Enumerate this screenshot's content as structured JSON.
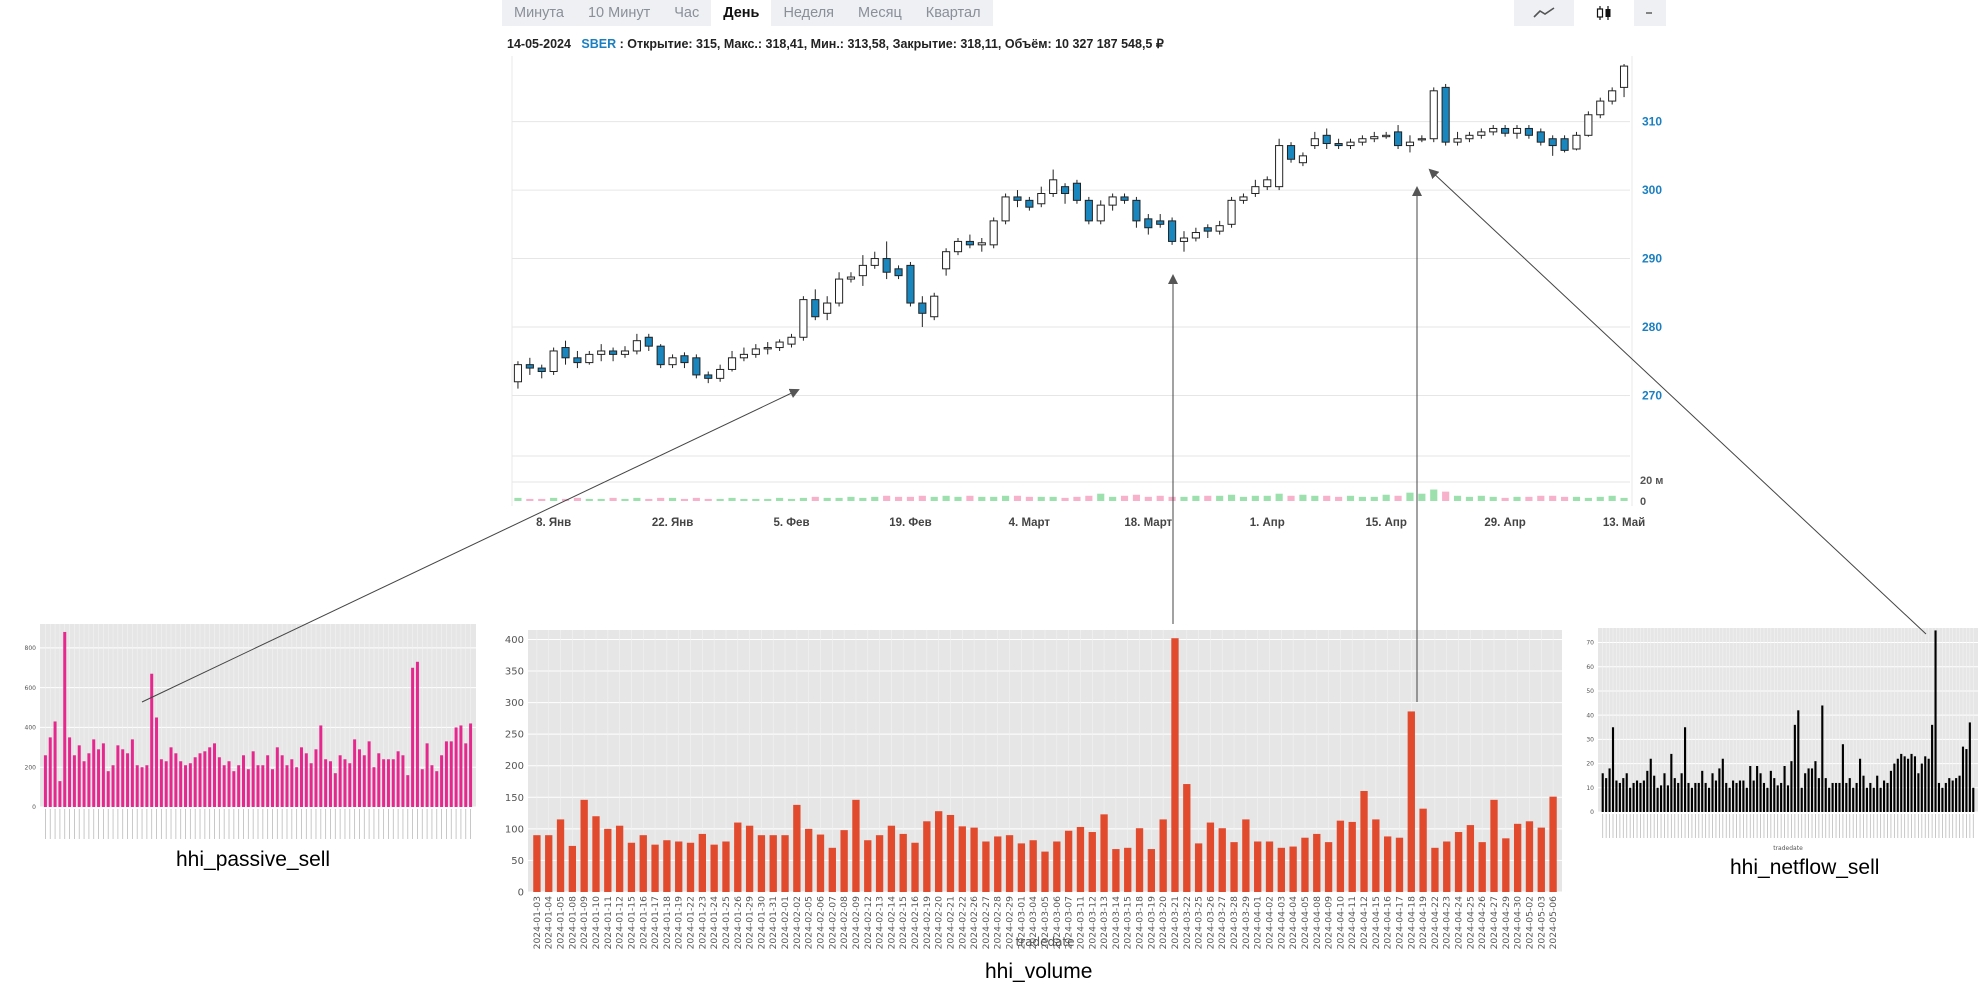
{
  "toolbar": {
    "timeframes": [
      {
        "label": "Минута",
        "active": false
      },
      {
        "label": "10 Минут",
        "active": false
      },
      {
        "label": "Час",
        "active": false
      },
      {
        "label": "День",
        "active": true
      },
      {
        "label": "Неделя",
        "active": false
      },
      {
        "label": "Месяц",
        "active": false
      },
      {
        "label": "Квартал",
        "active": false
      }
    ],
    "chart_types": [
      {
        "icon": "line-chart-icon",
        "active": false
      },
      {
        "icon": "candlestick-icon",
        "active": true
      }
    ]
  },
  "info_bar": {
    "date": "14-05-2024",
    "ticker": "SBER",
    "details": ": Открытие: 315, Макс.: 318,41, Мин.: 313,58, Закрытие: 318,11, Объём: 10 327 187 548,5 ₽"
  },
  "colors": {
    "bear_fill": "#1a86be",
    "bull_fill": "#ffffff",
    "vol_up": "#9be0ad",
    "vol_down": "#f7b1cb",
    "axis_text": "#1a7fc1",
    "passive_bar": "#e6278d",
    "volume_bar": "#e24a2e",
    "netflow_bar": "#f5a623",
    "plot_bg": "#e6e6e6"
  },
  "chart_data": [
    {
      "id": "sber-daily",
      "type": "candlestick",
      "title": "",
      "y_ticks": [
        "270",
        "280",
        "290",
        "300",
        "310"
      ],
      "ylim": [
        267,
        319
      ],
      "volume_ticks": [
        "0",
        "20 м"
      ],
      "x_ticks": [
        "8. Янв",
        "22. Янв",
        "5. Фев",
        "19. Фев",
        "4. Март",
        "18. Март",
        "1. Апр",
        "15. Апр",
        "29. Апр",
        "13. Май"
      ],
      "x_tick_index": [
        3,
        13,
        23,
        33,
        43,
        53,
        63,
        73,
        83,
        93
      ],
      "candles": [
        [
          272.0,
          274.5,
          271.0,
          275.0
        ],
        [
          274.5,
          274.0,
          273.0,
          275.5
        ],
        [
          274.0,
          273.5,
          272.5,
          274.5
        ],
        [
          273.5,
          276.5,
          273.0,
          277.0
        ],
        [
          277.0,
          275.5,
          274.5,
          278.0
        ],
        [
          275.5,
          274.8,
          274.0,
          276.5
        ],
        [
          274.8,
          276.0,
          274.5,
          276.5
        ],
        [
          276.0,
          276.5,
          275.0,
          277.5
        ],
        [
          276.5,
          276.0,
          275.0,
          277.0
        ],
        [
          276.0,
          276.5,
          275.5,
          277.2
        ],
        [
          276.5,
          278.0,
          276.0,
          279.0
        ],
        [
          278.5,
          277.2,
          276.5,
          279.0
        ],
        [
          277.2,
          274.5,
          274.0,
          277.5
        ],
        [
          274.5,
          275.5,
          274.0,
          276.0
        ],
        [
          275.8,
          274.8,
          274.0,
          276.3
        ],
        [
          275.5,
          273.0,
          272.5,
          276.0
        ],
        [
          273.0,
          272.5,
          271.8,
          273.5
        ],
        [
          272.5,
          273.8,
          272.0,
          274.5
        ],
        [
          273.8,
          275.5,
          273.5,
          276.5
        ],
        [
          275.5,
          276.0,
          275.0,
          277.0
        ],
        [
          276.0,
          276.8,
          275.5,
          277.5
        ],
        [
          276.8,
          277.0,
          276.0,
          277.8
        ],
        [
          277.0,
          277.8,
          276.5,
          278.2
        ],
        [
          277.5,
          278.5,
          277.0,
          279.0
        ],
        [
          278.5,
          284.0,
          278.0,
          284.5
        ],
        [
          284.0,
          281.5,
          281.0,
          285.5
        ],
        [
          282.0,
          283.5,
          281.0,
          284.5
        ],
        [
          283.5,
          287.0,
          283.0,
          288.0
        ],
        [
          287.0,
          287.3,
          286.5,
          288.0
        ],
        [
          287.5,
          289.0,
          286.0,
          290.5
        ],
        [
          289.0,
          290.0,
          288.5,
          291.0
        ],
        [
          290.0,
          288.0,
          287.0,
          292.5
        ],
        [
          288.5,
          287.5,
          287.0,
          289.0
        ],
        [
          289.0,
          283.5,
          283.0,
          289.5
        ],
        [
          283.5,
          282.0,
          280.0,
          284.5
        ],
        [
          281.5,
          284.5,
          281.0,
          285.0
        ],
        [
          288.5,
          291.0,
          287.5,
          291.5
        ],
        [
          291.0,
          292.5,
          290.5,
          293.0
        ],
        [
          292.5,
          292.0,
          291.5,
          293.5
        ],
        [
          292.0,
          292.3,
          291.0,
          293.0
        ],
        [
          292.0,
          295.5,
          291.5,
          296.0
        ],
        [
          295.5,
          299.0,
          295.0,
          299.5
        ],
        [
          299.0,
          298.5,
          297.5,
          300.0
        ],
        [
          298.5,
          297.5,
          297.0,
          299.0
        ],
        [
          298.0,
          299.5,
          297.5,
          300.5
        ],
        [
          299.5,
          301.5,
          299.0,
          303.0
        ],
        [
          300.5,
          299.5,
          298.0,
          301.0
        ],
        [
          301.0,
          298.5,
          298.0,
          301.5
        ],
        [
          298.5,
          295.5,
          295.0,
          299.0
        ],
        [
          295.5,
          297.8,
          295.0,
          298.5
        ],
        [
          297.8,
          299.0,
          297.0,
          299.5
        ],
        [
          299.0,
          298.5,
          298.0,
          299.5
        ],
        [
          298.5,
          295.5,
          294.5,
          299.0
        ],
        [
          295.8,
          294.5,
          293.5,
          296.5
        ],
        [
          295.5,
          295.0,
          294.5,
          296.5
        ],
        [
          295.5,
          292.5,
          292.0,
          296.0
        ],
        [
          292.5,
          293.0,
          291.0,
          294.0
        ],
        [
          293.0,
          293.8,
          292.5,
          294.5
        ],
        [
          294.5,
          294.0,
          293.0,
          295.0
        ],
        [
          294.0,
          294.8,
          293.5,
          295.5
        ],
        [
          295.0,
          298.5,
          294.5,
          299.0
        ],
        [
          298.5,
          299.0,
          298.0,
          299.5
        ],
        [
          299.5,
          300.5,
          299.0,
          301.5
        ],
        [
          300.5,
          301.5,
          300.0,
          302.0
        ],
        [
          300.5,
          306.5,
          300.0,
          307.5
        ],
        [
          306.5,
          304.5,
          304.0,
          307.0
        ],
        [
          304.0,
          305.0,
          303.5,
          305.5
        ],
        [
          306.5,
          307.5,
          306.0,
          308.5
        ],
        [
          308.0,
          306.8,
          306.0,
          309.0
        ],
        [
          306.8,
          306.5,
          306.0,
          307.5
        ],
        [
          306.5,
          307.0,
          306.0,
          307.5
        ],
        [
          307.0,
          307.5,
          306.5,
          308.0
        ],
        [
          307.5,
          307.8,
          307.0,
          308.5
        ],
        [
          307.8,
          308.0,
          307.5,
          308.5
        ],
        [
          308.5,
          306.5,
          306.0,
          309.5
        ],
        [
          306.5,
          307.0,
          305.5,
          308.0
        ],
        [
          307.5,
          307.5,
          307.0,
          308.0
        ],
        [
          307.5,
          314.5,
          307.0,
          315.0
        ],
        [
          315.0,
          307.0,
          306.5,
          315.5
        ],
        [
          307.0,
          307.5,
          306.5,
          308.5
        ],
        [
          307.5,
          308.0,
          307.0,
          308.5
        ],
        [
          308.0,
          308.5,
          307.5,
          309.0
        ],
        [
          308.5,
          309.0,
          308.0,
          309.5
        ],
        [
          309.0,
          308.3,
          307.8,
          309.5
        ],
        [
          308.3,
          309.0,
          307.5,
          309.5
        ],
        [
          309.0,
          308.0,
          307.5,
          309.5
        ],
        [
          308.5,
          307.0,
          306.5,
          309.0
        ],
        [
          307.5,
          306.5,
          305.0,
          308.0
        ],
        [
          307.5,
          305.8,
          305.5,
          308.0
        ],
        [
          306.0,
          308.0,
          305.8,
          308.5
        ],
        [
          308.0,
          311.0,
          307.8,
          311.5
        ],
        [
          311.0,
          313.0,
          310.5,
          313.5
        ],
        [
          313.0,
          314.5,
          312.5,
          315.0
        ],
        [
          315.0,
          318.11,
          313.58,
          318.41
        ]
      ],
      "volumes": [
        3,
        2,
        2,
        3,
        2,
        3,
        2,
        2,
        3,
        2,
        3,
        2,
        3,
        3,
        2,
        3,
        2,
        2,
        3,
        2,
        2,
        2,
        3,
        2,
        3,
        4,
        3,
        3,
        4,
        3,
        4,
        5,
        4,
        4,
        5,
        4,
        5,
        4,
        5,
        4,
        4,
        5,
        5,
        4,
        4,
        4,
        3,
        4,
        5,
        7,
        4,
        5,
        6,
        4,
        5,
        4,
        4,
        5,
        5,
        5,
        6,
        4,
        5,
        5,
        7,
        5,
        6,
        5,
        5,
        4,
        5,
        4,
        4,
        6,
        5,
        8,
        7,
        11,
        9,
        5,
        4,
        5,
        4,
        3,
        4,
        4,
        5,
        5,
        4,
        4,
        3,
        4,
        5,
        3
      ]
    },
    {
      "id": "hhi-passive-sell",
      "type": "bar",
      "title": "",
      "caption": "hhi_passive_sell",
      "y_ticks": [
        "0",
        "200",
        "400",
        "600",
        "800"
      ],
      "ylim": [
        0,
        920
      ],
      "values": [
        260,
        350,
        430,
        130,
        880,
        350,
        260,
        310,
        230,
        270,
        340,
        290,
        320,
        180,
        210,
        310,
        290,
        270,
        340,
        210,
        200,
        210,
        670,
        450,
        240,
        230,
        300,
        270,
        230,
        210,
        220,
        250,
        270,
        280,
        300,
        320,
        250,
        210,
        230,
        180,
        210,
        260,
        190,
        280,
        210,
        210,
        260,
        190,
        300,
        260,
        210,
        240,
        200,
        300,
        270,
        220,
        290,
        410,
        240,
        230,
        170,
        260,
        240,
        220,
        340,
        290,
        260,
        330,
        200,
        270,
        240,
        240,
        240,
        280,
        260,
        160,
        700,
        730,
        190,
        320,
        210,
        180,
        260,
        330,
        330,
        400,
        410,
        320,
        420
      ],
      "bar_color": "#e6278d"
    },
    {
      "id": "hhi-volume",
      "type": "bar",
      "title": "",
      "caption": "hhi_volume",
      "xlabel": "tradedate",
      "y_ticks": [
        "0",
        "50",
        "100",
        "150",
        "200",
        "250",
        "300",
        "350",
        "400"
      ],
      "ylim": [
        0,
        415
      ],
      "categories": [
        "2024-01-03",
        "2024-01-04",
        "2024-01-05",
        "2024-01-08",
        "2024-01-09",
        "2024-01-10",
        "2024-01-11",
        "2024-01-12",
        "2024-01-15",
        "2024-01-16",
        "2024-01-17",
        "2024-01-18",
        "2024-01-19",
        "2024-01-22",
        "2024-01-23",
        "2024-01-24",
        "2024-01-25",
        "2024-01-26",
        "2024-01-29",
        "2024-01-30",
        "2024-01-31",
        "2024-02-01",
        "2024-02-02",
        "2024-02-05",
        "2024-02-06",
        "2024-02-07",
        "2024-02-08",
        "2024-02-09",
        "2024-02-12",
        "2024-02-13",
        "2024-02-14",
        "2024-02-15",
        "2024-02-16",
        "2024-02-19",
        "2024-02-20",
        "2024-02-21",
        "2024-02-22",
        "2024-02-26",
        "2024-02-27",
        "2024-02-28",
        "2024-02-29",
        "2024-03-01",
        "2024-03-04",
        "2024-03-05",
        "2024-03-06",
        "2024-03-07",
        "2024-03-11",
        "2024-03-12",
        "2024-03-13",
        "2024-03-14",
        "2024-03-15",
        "2024-03-18",
        "2024-03-19",
        "2024-03-20",
        "2024-03-21",
        "2024-03-22",
        "2024-03-25",
        "2024-03-26",
        "2024-03-27",
        "2024-03-28",
        "2024-03-29",
        "2024-04-01",
        "2024-04-02",
        "2024-04-03",
        "2024-04-04",
        "2024-04-05",
        "2024-04-08",
        "2024-04-09",
        "2024-04-10",
        "2024-04-11",
        "2024-04-12",
        "2024-04-15",
        "2024-04-16",
        "2024-04-17",
        "2024-04-18",
        "2024-04-19",
        "2024-04-22",
        "2024-04-23",
        "2024-04-24",
        "2024-04-25",
        "2024-04-26",
        "2024-04-27",
        "2024-04-29",
        "2024-04-30",
        "2024-05-02",
        "2024-05-03",
        "2024-05-06"
      ],
      "values": [
        90,
        90,
        115,
        73,
        146,
        120,
        100,
        105,
        78,
        90,
        75,
        82,
        80,
        78,
        92,
        75,
        80,
        110,
        105,
        90,
        90,
        90,
        138,
        100,
        91,
        70,
        98,
        146,
        82,
        90,
        105,
        92,
        78,
        112,
        128,
        122,
        104,
        102,
        80,
        88,
        90,
        77,
        82,
        64,
        80,
        97,
        103,
        95,
        123,
        68,
        70,
        101,
        68,
        115,
        402,
        171,
        77,
        110,
        101,
        79,
        115,
        80,
        80,
        70,
        72,
        86,
        92,
        79,
        113,
        111,
        160,
        115,
        88,
        86,
        286,
        132,
        70,
        80,
        95,
        106,
        79,
        146,
        85,
        108,
        112,
        102,
        151
      ],
      "bar_color": "#e24a2e"
    },
    {
      "id": "hhi-netflow-sell",
      "type": "bar",
      "title": "",
      "caption": "hhi_netflow_sell",
      "xlabel": "tradedate",
      "y_ticks": [
        "0",
        "10",
        "20",
        "30",
        "40",
        "50",
        "60",
        "70"
      ],
      "ylim": [
        0,
        76
      ],
      "values": [
        16,
        14,
        18,
        35,
        13,
        12,
        14,
        16,
        10,
        12,
        13,
        12,
        13,
        17,
        22,
        15,
        10,
        11,
        16,
        11,
        24,
        14,
        12,
        16,
        35,
        12,
        10,
        12,
        12,
        17,
        12,
        10,
        16,
        13,
        18,
        22,
        12,
        10,
        13,
        12,
        13,
        13,
        10,
        19,
        13,
        19,
        16,
        12,
        10,
        17,
        14,
        11,
        12,
        19,
        11,
        21,
        36,
        42,
        10,
        16,
        18,
        18,
        21,
        14,
        44,
        14,
        10,
        12,
        12,
        12,
        28,
        12,
        14,
        10,
        12,
        22,
        15,
        10,
        12,
        10,
        15,
        10,
        13,
        12,
        17,
        20,
        22,
        24,
        23,
        22,
        24,
        23,
        16,
        20,
        23,
        22,
        36,
        75,
        12,
        10,
        12,
        14,
        13,
        14,
        15,
        27,
        26,
        37,
        10
      ]
    }
  ],
  "captions": {
    "passive": "hhi_passive_sell",
    "volume": "hhi_volume",
    "netflow": "hhi_netflow_sell"
  }
}
